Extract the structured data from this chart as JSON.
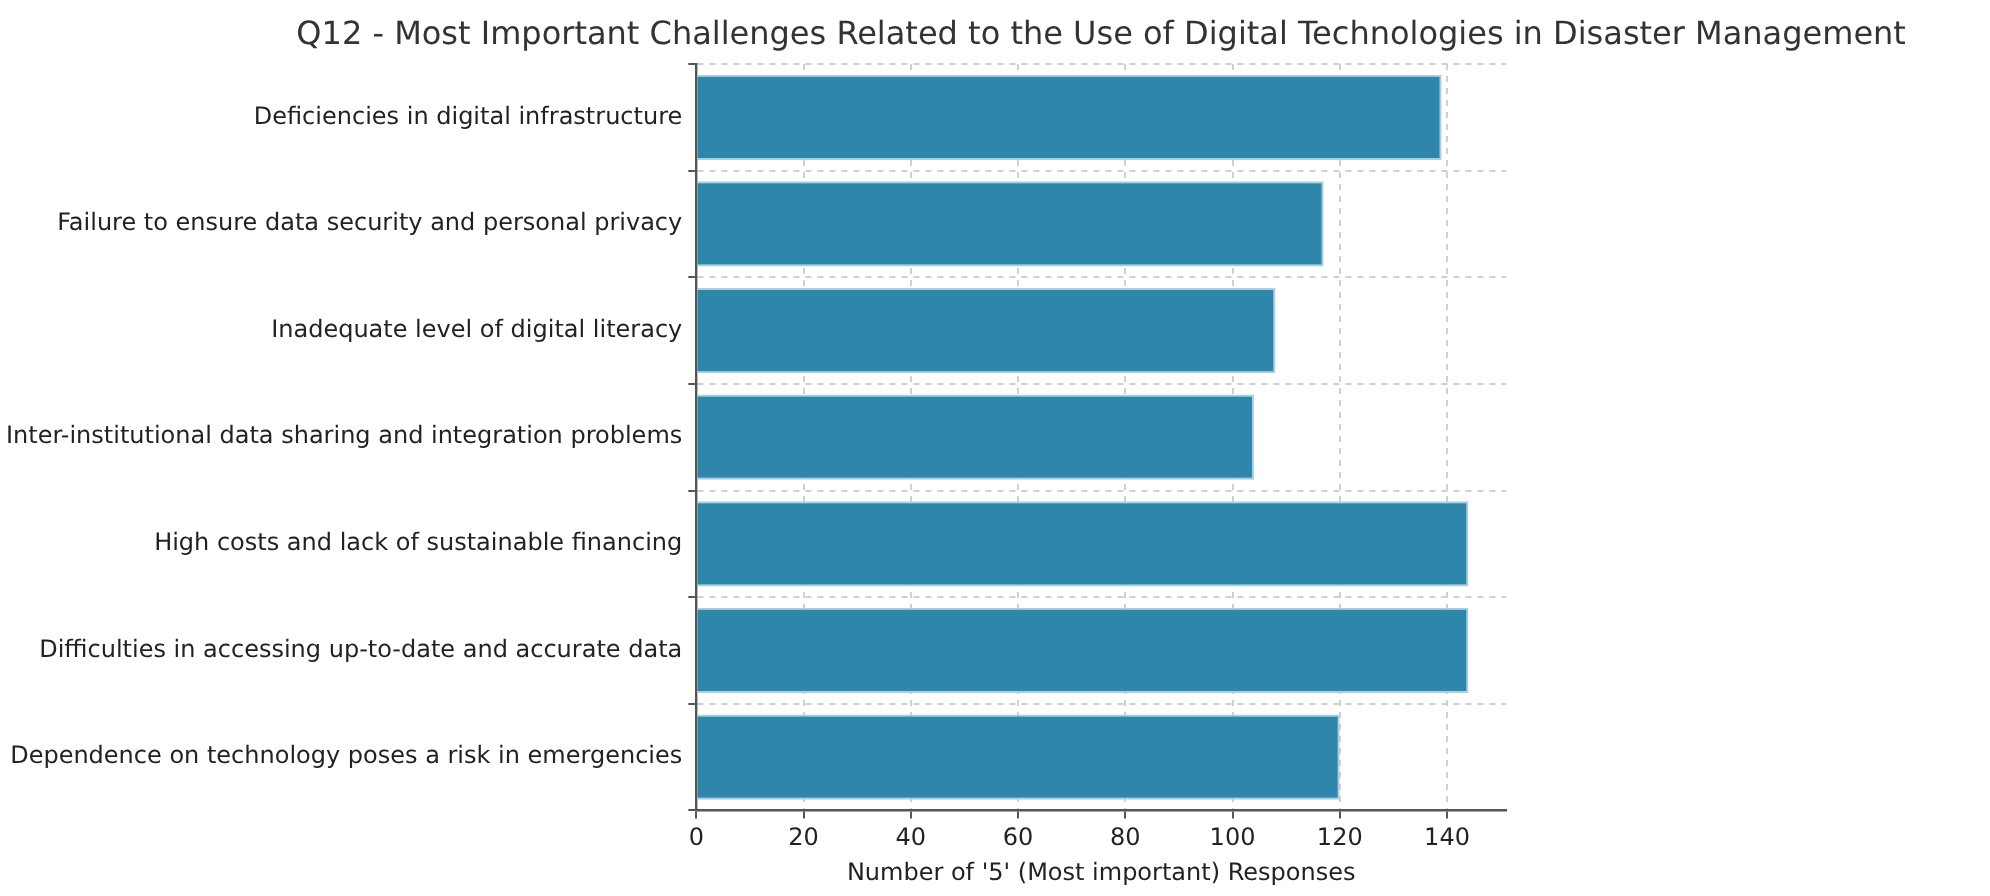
{
  "chart_data": {
    "type": "bar",
    "orientation": "horizontal",
    "title": "Q12 - Most Important Challenges Related to the Use of Digital Technologies in Disaster Management",
    "categories": [
      "Deficiencies in digital infrastructure",
      "Failure to ensure data security and personal privacy",
      "Inadequate level of digital literacy",
      "Inter-institutional data sharing and integration problems",
      "High costs and lack of sustainable financing",
      "Difficulties in accessing up-to-date and accurate data",
      "Dependence on technology poses a risk in emergencies"
    ],
    "values": [
      139,
      117,
      108,
      104,
      144,
      144,
      120
    ],
    "color": "#2e86ab",
    "xlabel": "Number of '5' (Most important) Responses",
    "xlim": [
      0,
      151
    ],
    "xticks": [
      0,
      20,
      40,
      60,
      80,
      100,
      120,
      140
    ],
    "grid": true,
    "legend": false
  }
}
